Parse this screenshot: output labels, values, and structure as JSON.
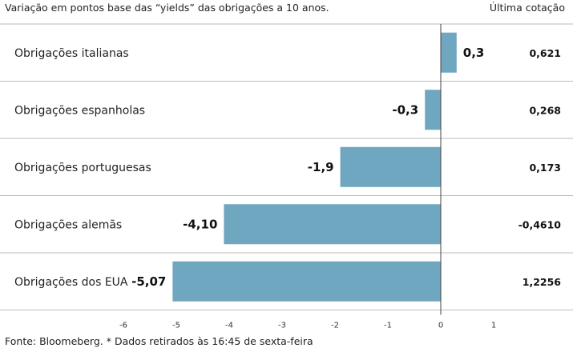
{
  "subtitle": "Variação em pontos base das “yields” das obrigações a 10 anos.",
  "last_quote_header": "Última cotação",
  "footer": "Fonte: Bloomeberg. * Dados retirados às 16:45 de sexta-feira",
  "colors": {
    "bar": "#6fa6c0",
    "rule": "#bbbbbb",
    "axis": "#444444"
  },
  "chart_data": {
    "type": "bar",
    "orientation": "horizontal",
    "title": "",
    "xlabel": "",
    "ylabel": "",
    "xlim": [
      -6,
      1
    ],
    "xticks": [
      "-6",
      "-5",
      "-4",
      "-3",
      "-2",
      "-1",
      "0",
      "1"
    ],
    "grid": false,
    "categories": [
      "Obrigações italianas",
      "Obrigações espanholas",
      "Obrigações portuguesas",
      "Obrigações alemãs",
      "Obrigações dos EUA"
    ],
    "values": [
      0.3,
      -0.3,
      -1.9,
      -4.1,
      -5.07
    ],
    "value_labels": [
      "0,3",
      "-0,3",
      "-1,9",
      "-4,10",
      "-5,07"
    ],
    "last_quote": [
      "0,621",
      "0,268",
      "0,173",
      "-0,4610",
      "1,2256"
    ]
  }
}
